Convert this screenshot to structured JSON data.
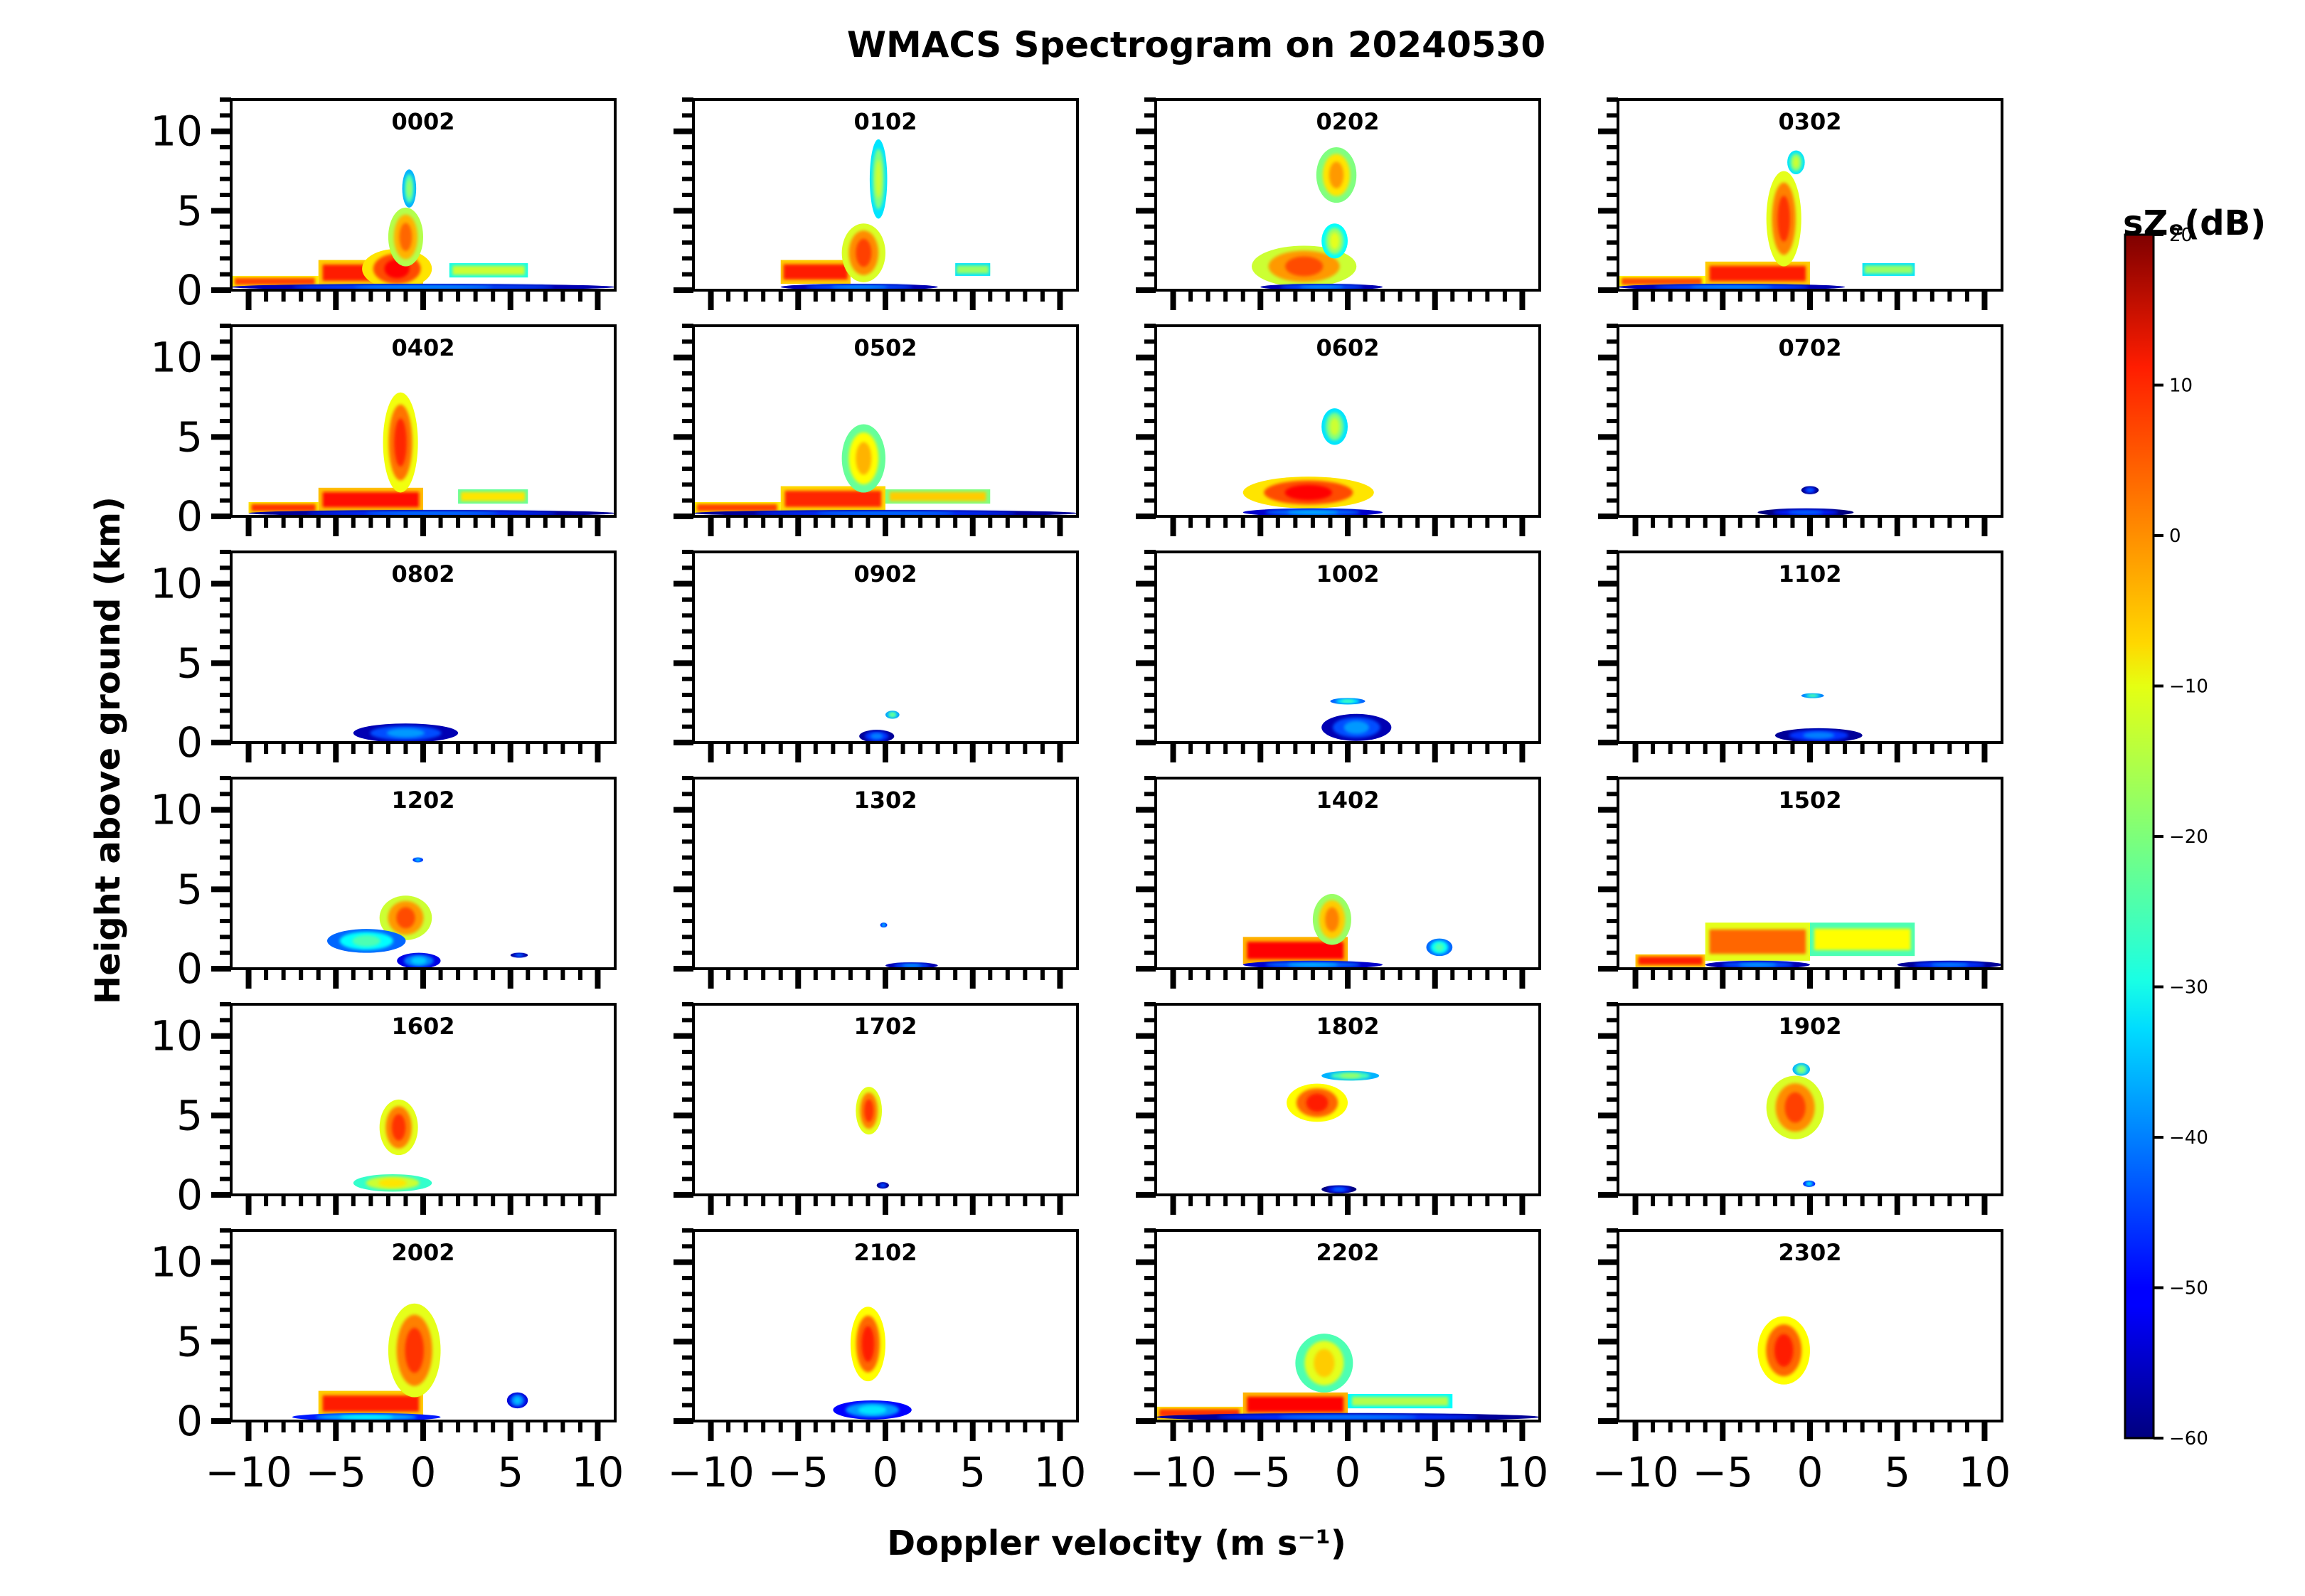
{
  "figure": {
    "title": "WMACS Spectrogram on 20240530",
    "xlabel": "Doppler velocity (m s⁻¹)",
    "ylabel": "Height above ground (km)"
  },
  "colorbar": {
    "label": "sZₑ(dB)",
    "ticks": [
      20,
      10,
      0,
      -10,
      -20,
      -30,
      -40,
      -50,
      -60
    ],
    "tick_labels": [
      "20",
      "10",
      "0",
      "−10",
      "−20",
      "−30",
      "−40",
      "−50",
      "−60"
    ],
    "range": [
      -60,
      20
    ],
    "colormap": "jet"
  },
  "chart_data": {
    "type": "heatmap",
    "title": "WMACS Spectrogram on 20240530",
    "xlabel": "Doppler velocity (m s⁻¹)",
    "ylabel": "Height above ground (km)",
    "xlim": [
      -11,
      11
    ],
    "ylim": [
      0,
      12
    ],
    "xticks": [
      -10,
      -5,
      0,
      5,
      10
    ],
    "xtick_labels": [
      "−10",
      "−5",
      "0",
      "5",
      "10"
    ],
    "yticks": [
      0,
      5,
      10
    ],
    "ytick_labels": [
      "0",
      "5",
      "10"
    ],
    "value_range": [
      -60,
      20
    ],
    "grid": false,
    "panels": [
      {
        "label": "0002",
        "blobs": [
          {
            "x": [
              -11,
              -6
            ],
            "y": [
              0.2,
              0.9
            ],
            "v": 5,
            "shape": "rect"
          },
          {
            "x": [
              -6,
              0
            ],
            "y": [
              0.3,
              1.9
            ],
            "v": 8,
            "shape": "rect"
          },
          {
            "x": [
              -3.5,
              0.5
            ],
            "y": [
              0.1,
              2.6
            ],
            "v": 10
          },
          {
            "x": [
              -2,
              0
            ],
            "y": [
              1.5,
              5.2
            ],
            "v": 2
          },
          {
            "x": [
              -1.2,
              -0.4
            ],
            "y": [
              5.2,
              7.6
            ],
            "v": -18
          },
          {
            "x": [
              1.5,
              6
            ],
            "y": [
              0.8,
              1.7
            ],
            "v": -14,
            "shape": "rect"
          },
          {
            "x": [
              -11,
              11
            ],
            "y": [
              0,
              0.4
            ],
            "v": -38
          }
        ]
      },
      {
        "label": "0102",
        "blobs": [
          {
            "x": [
              -6,
              -2
            ],
            "y": [
              0.4,
              1.9
            ],
            "v": 8,
            "shape": "rect"
          },
          {
            "x": [
              -2.5,
              0
            ],
            "y": [
              0.5,
              4.2
            ],
            "v": 5
          },
          {
            "x": [
              -0.9,
              0.1
            ],
            "y": [
              4.5,
              9.5
            ],
            "v": -14
          },
          {
            "x": [
              4,
              6
            ],
            "y": [
              0.9,
              1.7
            ],
            "v": -18,
            "shape": "rect"
          },
          {
            "x": [
              -6,
              3
            ],
            "y": [
              0,
              0.4
            ],
            "v": -38
          }
        ]
      },
      {
        "label": "0202",
        "blobs": [
          {
            "x": [
              -5.5,
              0.5
            ],
            "y": [
              0.2,
              2.8
            ],
            "v": 4
          },
          {
            "x": [
              -1.5,
              0
            ],
            "y": [
              2,
              4.2
            ],
            "v": -12
          },
          {
            "x": [
              -1.8,
              0.5
            ],
            "y": [
              5.5,
              9.0
            ],
            "v": -2
          },
          {
            "x": [
              -5,
              2
            ],
            "y": [
              0,
              0.4
            ],
            "v": -38
          }
        ]
      },
      {
        "label": "0302",
        "blobs": [
          {
            "x": [
              -11,
              -6
            ],
            "y": [
              0.2,
              0.9
            ],
            "v": 4,
            "shape": "rect"
          },
          {
            "x": [
              -6,
              0
            ],
            "y": [
              0.3,
              1.8
            ],
            "v": 8,
            "shape": "rect"
          },
          {
            "x": [
              -2.5,
              -0.5
            ],
            "y": [
              1.5,
              7.5
            ],
            "v": 6
          },
          {
            "x": [
              -1.3,
              -0.3
            ],
            "y": [
              7.3,
              8.8
            ],
            "v": -14
          },
          {
            "x": [
              3,
              6
            ],
            "y": [
              0.9,
              1.7
            ],
            "v": -18,
            "shape": "rect"
          },
          {
            "x": [
              -11,
              2
            ],
            "y": [
              0,
              0.4
            ],
            "v": -38
          }
        ]
      },
      {
        "label": "0402",
        "blobs": [
          {
            "x": [
              -10,
              -6
            ],
            "y": [
              0.2,
              0.9
            ],
            "v": 6,
            "shape": "rect"
          },
          {
            "x": [
              -6,
              0
            ],
            "y": [
              0.3,
              1.8
            ],
            "v": 9,
            "shape": "rect"
          },
          {
            "x": [
              -2.3,
              -0.3
            ],
            "y": [
              1.5,
              7.8
            ],
            "v": 7
          },
          {
            "x": [
              2,
              6
            ],
            "y": [
              0.8,
              1.7
            ],
            "v": -8,
            "shape": "rect"
          },
          {
            "x": [
              -10,
              11
            ],
            "y": [
              0,
              0.4
            ],
            "v": -40
          }
        ]
      },
      {
        "label": "0502",
        "blobs": [
          {
            "x": [
              -11,
              -6
            ],
            "y": [
              0.2,
              0.9
            ],
            "v": 5,
            "shape": "rect"
          },
          {
            "x": [
              -6,
              0
            ],
            "y": [
              0.3,
              1.9
            ],
            "v": 7,
            "shape": "rect"
          },
          {
            "x": [
              -2.5,
              0
            ],
            "y": [
              1.5,
              5.8
            ],
            "v": -4
          },
          {
            "x": [
              0,
              6
            ],
            "y": [
              0.8,
              1.7
            ],
            "v": -6,
            "shape": "rect"
          },
          {
            "x": [
              -11,
              11
            ],
            "y": [
              0,
              0.4
            ],
            "v": -40
          }
        ]
      },
      {
        "label": "0602",
        "blobs": [
          {
            "x": [
              -6,
              1.5
            ],
            "y": [
              0.5,
              2.5
            ],
            "v": 10
          },
          {
            "x": [
              -1.5,
              0
            ],
            "y": [
              4.5,
              6.8
            ],
            "v": -14
          },
          {
            "x": [
              -6,
              2
            ],
            "y": [
              0,
              0.5
            ],
            "v": -36
          }
        ]
      },
      {
        "label": "0702",
        "blobs": [
          {
            "x": [
              -3,
              2.5
            ],
            "y": [
              0,
              0.5
            ],
            "v": -42
          },
          {
            "x": [
              -0.5,
              0.5
            ],
            "y": [
              1.4,
              1.9
            ],
            "v": -42
          }
        ]
      },
      {
        "label": "0802",
        "blobs": [
          {
            "x": [
              -4,
              2
            ],
            "y": [
              0,
              1.2
            ],
            "v": -38
          }
        ]
      },
      {
        "label": "0902",
        "blobs": [
          {
            "x": [
              -1.5,
              0.5
            ],
            "y": [
              0,
              0.8
            ],
            "v": -40
          },
          {
            "x": [
              0,
              0.8
            ],
            "y": [
              1.5,
              2.0
            ],
            "v": -20
          }
        ]
      },
      {
        "label": "1002",
        "blobs": [
          {
            "x": [
              -1,
              1
            ],
            "y": [
              2.4,
              2.8
            ],
            "v": -24
          },
          {
            "x": [
              -1.5,
              2.5
            ],
            "y": [
              0.1,
              1.8
            ],
            "v": -38
          }
        ]
      },
      {
        "label": "1102",
        "blobs": [
          {
            "x": [
              -0.5,
              0.8
            ],
            "y": [
              2.8,
              3.1
            ],
            "v": -22
          },
          {
            "x": [
              -2,
              3
            ],
            "y": [
              0,
              0.9
            ],
            "v": -40
          }
        ]
      },
      {
        "label": "1202",
        "blobs": [
          {
            "x": [
              -2.5,
              0.5
            ],
            "y": [
              1.8,
              4.6
            ],
            "v": 4
          },
          {
            "x": [
              -5.5,
              -1
            ],
            "y": [
              1.0,
              2.5
            ],
            "v": -24
          },
          {
            "x": [
              -1.5,
              1
            ],
            "y": [
              0,
              1
            ],
            "v": -34
          },
          {
            "x": [
              5,
              6
            ],
            "y": [
              0.7,
              1.0
            ],
            "v": -40
          },
          {
            "x": [
              -0.6,
              0
            ],
            "y": [
              6.7,
              7.0
            ],
            "v": -30
          }
        ]
      },
      {
        "label": "1302",
        "blobs": [
          {
            "x": [
              0,
              3
            ],
            "y": [
              0,
              0.4
            ],
            "v": -38
          },
          {
            "x": [
              -0.3,
              0.1
            ],
            "y": [
              2.6,
              2.9
            ],
            "v": -30
          }
        ]
      },
      {
        "label": "1402",
        "blobs": [
          {
            "x": [
              -6,
              0
            ],
            "y": [
              0.3,
              2.0
            ],
            "v": 10,
            "shape": "rect"
          },
          {
            "x": [
              -2,
              0.2
            ],
            "y": [
              1.5,
              4.7
            ],
            "v": 0
          },
          {
            "x": [
              -6,
              2
            ],
            "y": [
              0,
              0.5
            ],
            "v": -36
          },
          {
            "x": [
              4.5,
              6
            ],
            "y": [
              0.8,
              1.9
            ],
            "v": -24
          }
        ]
      },
      {
        "label": "1502",
        "blobs": [
          {
            "x": [
              -10,
              -6
            ],
            "y": [
              0.1,
              0.9
            ],
            "v": 8,
            "shape": "rect"
          },
          {
            "x": [
              -6,
              0
            ],
            "y": [
              0.5,
              2.9
            ],
            "v": 2,
            "shape": "rect"
          },
          {
            "x": [
              0,
              6
            ],
            "y": [
              0.8,
              2.9
            ],
            "v": -10,
            "shape": "rect"
          },
          {
            "x": [
              5,
              11
            ],
            "y": [
              0,
              0.5
            ],
            "v": -40
          },
          {
            "x": [
              -6,
              0
            ],
            "y": [
              0,
              0.5
            ],
            "v": -38
          }
        ]
      },
      {
        "label": "1602",
        "blobs": [
          {
            "x": [
              -2.5,
              -0.3
            ],
            "y": [
              2.5,
              6.0
            ],
            "v": 6
          },
          {
            "x": [
              -4,
              0.5
            ],
            "y": [
              0.2,
              1.3
            ],
            "v": -8
          }
        ]
      },
      {
        "label": "1702",
        "blobs": [
          {
            "x": [
              -1.7,
              -0.2
            ],
            "y": [
              3.8,
              6.8
            ],
            "v": 6
          },
          {
            "x": [
              -0.5,
              0.2
            ],
            "y": [
              0.4,
              0.8
            ],
            "v": -42
          }
        ]
      },
      {
        "label": "1802",
        "blobs": [
          {
            "x": [
              -3.5,
              0
            ],
            "y": [
              4.6,
              7.0
            ],
            "v": 8
          },
          {
            "x": [
              -1.5,
              1.8
            ],
            "y": [
              7.2,
              7.8
            ],
            "v": -18
          },
          {
            "x": [
              -1.5,
              0.5
            ],
            "y": [
              0.1,
              0.6
            ],
            "v": -42
          }
        ]
      },
      {
        "label": "1902",
        "blobs": [
          {
            "x": [
              -2.5,
              0.8
            ],
            "y": [
              3.5,
              7.5
            ],
            "v": 5
          },
          {
            "x": [
              -1,
              0
            ],
            "y": [
              7.5,
              8.3
            ],
            "v": -18
          },
          {
            "x": [
              -0.4,
              0.3
            ],
            "y": [
              0.5,
              0.9
            ],
            "v": -30
          }
        ]
      },
      {
        "label": "2002",
        "blobs": [
          {
            "x": [
              -6,
              0
            ],
            "y": [
              0.3,
              1.9
            ],
            "v": 8,
            "shape": "rect"
          },
          {
            "x": [
              -2,
              1
            ],
            "y": [
              1.5,
              7.4
            ],
            "v": 6
          },
          {
            "x": [
              -7.5,
              1
            ],
            "y": [
              0,
              0.5
            ],
            "v": -30
          },
          {
            "x": [
              4.8,
              6
            ],
            "y": [
              0.8,
              1.8
            ],
            "v": -35
          }
        ]
      },
      {
        "label": "2102",
        "blobs": [
          {
            "x": [
              -2,
              0
            ],
            "y": [
              2.5,
              7.2
            ],
            "v": 8
          },
          {
            "x": [
              -3,
              1.5
            ],
            "y": [
              0.1,
              1.3
            ],
            "v": -32
          }
        ]
      },
      {
        "label": "2202",
        "blobs": [
          {
            "x": [
              -11,
              -6
            ],
            "y": [
              0.1,
              0.9
            ],
            "v": 6,
            "shape": "rect"
          },
          {
            "x": [
              -6,
              0
            ],
            "y": [
              0.3,
              1.8
            ],
            "v": 10,
            "shape": "rect"
          },
          {
            "x": [
              -3,
              0.3
            ],
            "y": [
              1.8,
              5.5
            ],
            "v": -6
          },
          {
            "x": [
              0,
              6
            ],
            "y": [
              0.8,
              1.7
            ],
            "v": -16,
            "shape": "rect"
          },
          {
            "x": [
              -11,
              11
            ],
            "y": [
              0,
              0.5
            ],
            "v": -40
          }
        ]
      },
      {
        "label": "2302",
        "blobs": [
          {
            "x": [
              -3,
              0
            ],
            "y": [
              2.3,
              6.6
            ],
            "v": 8
          }
        ]
      }
    ]
  }
}
